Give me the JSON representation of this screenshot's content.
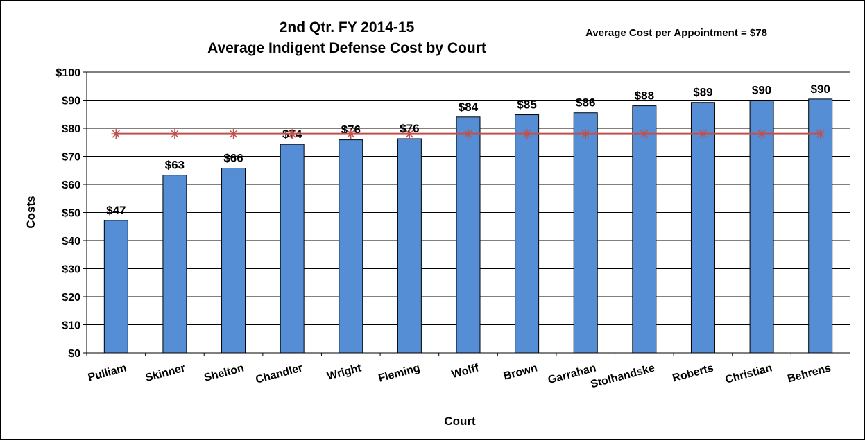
{
  "chart_data": {
    "type": "bar",
    "title": [
      "2nd Qtr. FY 2014-15",
      "Average Indigent Defense Cost by Court"
    ],
    "annotation": "Average Cost per Appointment = $78",
    "x_label": "Court",
    "y_label": "Costs",
    "categories": [
      "Pulliam",
      "Skinner",
      "Shelton",
      "Chandler",
      "Wright",
      "Fleming",
      "Wolff",
      "Brown",
      "Garrahan",
      "Stolhandske",
      "Roberts",
      "Christian",
      "Behrens"
    ],
    "series": [
      {
        "type": "bar",
        "color": "#558ed5",
        "values": [
          47.2,
          63.3,
          65.8,
          74.3,
          75.9,
          76.3,
          84.0,
          84.8,
          85.5,
          88.0,
          89.2,
          90.0,
          90.4
        ],
        "value_labels": [
          "$47",
          "$63",
          "$66",
          "$74",
          "$76",
          "$76",
          "$84",
          "$85",
          "$86",
          "$88",
          "$89",
          "$90",
          "$90"
        ]
      },
      {
        "type": "line",
        "color": "#c0504d",
        "values": [
          78,
          78,
          78,
          78,
          78,
          78,
          78,
          78,
          78,
          78,
          78,
          78,
          78
        ]
      }
    ],
    "ylim": [
      0,
      100
    ],
    "yticks": [
      {
        "value": 0,
        "label": "$0"
      },
      {
        "value": 10,
        "label": "$10"
      },
      {
        "value": 20,
        "label": "$20"
      },
      {
        "value": 30,
        "label": "$30"
      },
      {
        "value": 40,
        "label": "$40"
      },
      {
        "value": 50,
        "label": "$50"
      },
      {
        "value": 60,
        "label": "$60"
      },
      {
        "value": 70,
        "label": "$70"
      },
      {
        "value": 80,
        "label": "$80"
      },
      {
        "value": 90,
        "label": "$90"
      },
      {
        "value": 100,
        "label": "$100"
      }
    ],
    "grid": true
  }
}
